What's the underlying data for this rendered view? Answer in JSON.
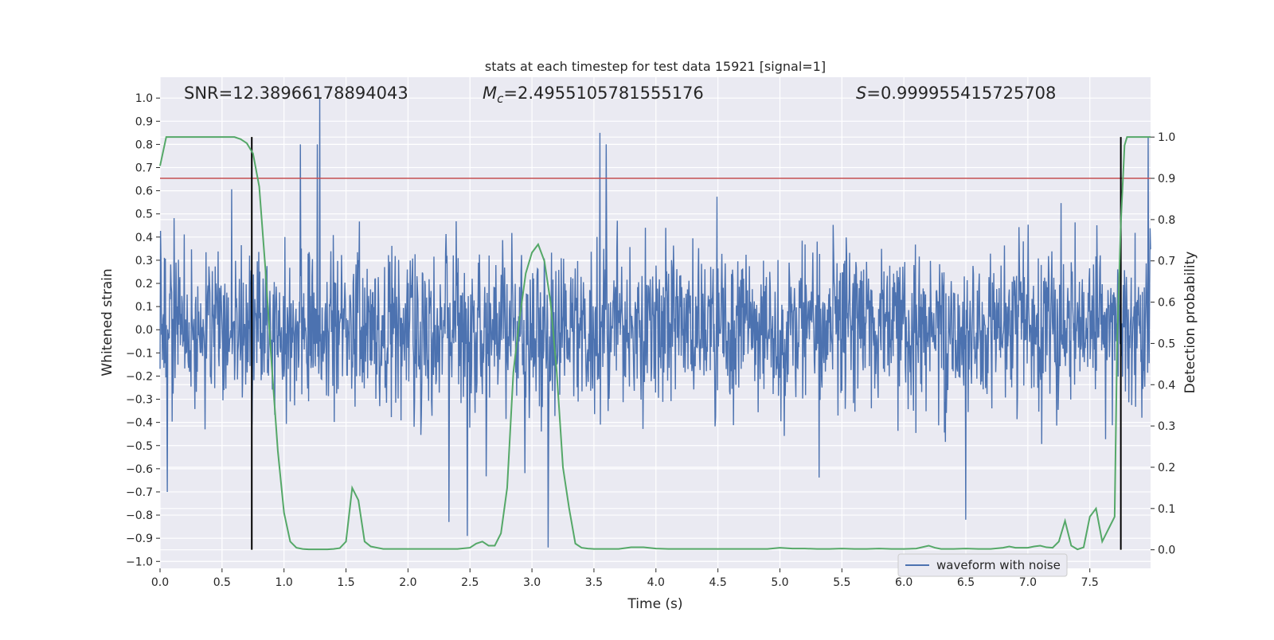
{
  "chart_data": {
    "type": "line",
    "title": "stats at each timestep for test data 15921 [signal=1]",
    "xlabel": "Time (s)",
    "ylabel": "Whitened strain",
    "y2label": "Detection probability",
    "xlim": [
      0.0,
      7.99
    ],
    "ylim": [
      -1.03,
      1.09
    ],
    "y2lim": [
      -0.045,
      1.145
    ],
    "xticks": [
      "0.0",
      "0.5",
      "1.0",
      "1.5",
      "2.0",
      "2.5",
      "3.0",
      "3.5",
      "4.0",
      "4.5",
      "5.0",
      "5.5",
      "6.0",
      "6.5",
      "7.0",
      "7.5"
    ],
    "yticks": [
      "1.0",
      "0.9",
      "0.8",
      "0.7",
      "0.6",
      "0.5",
      "0.4",
      "0.3",
      "0.2",
      "0.1",
      "0.0",
      "−0.1",
      "−0.2",
      "−0.3",
      "−0.4",
      "−0.5",
      "−0.6",
      "−0.7",
      "−0.8",
      "−0.9",
      "−1.0"
    ],
    "y2ticks": [
      "1.0",
      "0.9",
      "0.8",
      "0.7",
      "0.6",
      "0.5",
      "0.4",
      "0.3",
      "0.2",
      "0.1",
      "0.0"
    ],
    "annotations": {
      "snr": "SNR=12.38966178894043",
      "mc_symbol": "M",
      "mc_sub": "c",
      "mc_value": "=2.4955105781555176",
      "s_symbol": "S",
      "s_value": "=0.999955415725708"
    },
    "legend": {
      "label": "waveform with noise",
      "location": "lower-right"
    },
    "threshold": {
      "y2": 0.9,
      "color": "#c44e52"
    },
    "vlines": {
      "x": [
        0.74,
        7.75
      ],
      "y2_range": [
        0.0,
        1.0
      ],
      "color": "#000000"
    },
    "waveform": {
      "name": "waveform with noise",
      "color": "#4c72b0",
      "n": 2048,
      "x_range": [
        0.0,
        7.99
      ],
      "typical_amplitude": 0.18,
      "spike_max": 0.78,
      "spike_min": -0.9,
      "seed": 15921,
      "peaks": [
        {
          "x": 1.29,
          "y": 1.0
        },
        {
          "x": 1.13,
          "y": 0.8
        },
        {
          "x": 1.27,
          "y": 0.8
        },
        {
          "x": 3.55,
          "y": 0.85
        },
        {
          "x": 3.6,
          "y": 0.8
        },
        {
          "x": 3.13,
          "y": -0.94
        },
        {
          "x": 2.33,
          "y": -0.83
        },
        {
          "x": 2.48,
          "y": -0.89
        },
        {
          "x": 6.5,
          "y": -0.82
        },
        {
          "x": 0.06,
          "y": -0.7
        },
        {
          "x": 7.97,
          "y": 0.83
        }
      ]
    },
    "probability": {
      "name": "detection probability",
      "color": "#55a868",
      "x": [
        0.0,
        0.05,
        0.1,
        0.15,
        0.2,
        0.25,
        0.3,
        0.35,
        0.4,
        0.45,
        0.5,
        0.55,
        0.6,
        0.65,
        0.7,
        0.75,
        0.8,
        0.85,
        0.9,
        0.95,
        1.0,
        1.05,
        1.1,
        1.15,
        1.2,
        1.25,
        1.3,
        1.35,
        1.4,
        1.45,
        1.5,
        1.55,
        1.6,
        1.65,
        1.7,
        1.75,
        1.8,
        1.85,
        1.9,
        1.95,
        2.0,
        2.1,
        2.2,
        2.3,
        2.4,
        2.5,
        2.55,
        2.6,
        2.65,
        2.7,
        2.75,
        2.8,
        2.85,
        2.9,
        2.95,
        3.0,
        3.05,
        3.1,
        3.15,
        3.2,
        3.25,
        3.3,
        3.35,
        3.4,
        3.45,
        3.5,
        3.6,
        3.7,
        3.8,
        3.9,
        4.0,
        4.1,
        4.2,
        4.5,
        4.8,
        4.9,
        5.0,
        5.1,
        5.2,
        5.3,
        5.4,
        5.5,
        5.6,
        5.7,
        5.8,
        5.9,
        6.0,
        6.1,
        6.2,
        6.25,
        6.3,
        6.4,
        6.5,
        6.6,
        6.7,
        6.8,
        6.85,
        6.9,
        6.95,
        7.0,
        7.05,
        7.1,
        7.15,
        7.2,
        7.25,
        7.3,
        7.35,
        7.4,
        7.45,
        7.5,
        7.55,
        7.6,
        7.65,
        7.7,
        7.72,
        7.75,
        7.78,
        7.8,
        7.83,
        7.85,
        7.9,
        7.95,
        7.99
      ],
      "y": [
        0.93,
        1.0,
        1.0,
        1.0,
        1.0,
        1.0,
        1.0,
        1.0,
        1.0,
        1.0,
        1.0,
        1.0,
        1.0,
        0.995,
        0.985,
        0.96,
        0.88,
        0.68,
        0.45,
        0.24,
        0.09,
        0.02,
        0.005,
        0.002,
        0.001,
        0.001,
        0.001,
        0.001,
        0.002,
        0.004,
        0.02,
        0.15,
        0.12,
        0.02,
        0.008,
        0.005,
        0.002,
        0.002,
        0.002,
        0.002,
        0.002,
        0.002,
        0.002,
        0.002,
        0.002,
        0.005,
        0.015,
        0.02,
        0.01,
        0.01,
        0.04,
        0.15,
        0.43,
        0.56,
        0.67,
        0.72,
        0.74,
        0.7,
        0.6,
        0.43,
        0.2,
        0.1,
        0.015,
        0.005,
        0.003,
        0.002,
        0.002,
        0.002,
        0.006,
        0.006,
        0.003,
        0.002,
        0.002,
        0.002,
        0.002,
        0.002,
        0.005,
        0.003,
        0.003,
        0.002,
        0.002,
        0.003,
        0.002,
        0.002,
        0.003,
        0.002,
        0.002,
        0.003,
        0.01,
        0.005,
        0.002,
        0.002,
        0.003,
        0.002,
        0.002,
        0.005,
        0.008,
        0.005,
        0.005,
        0.005,
        0.008,
        0.01,
        0.006,
        0.005,
        0.02,
        0.07,
        0.01,
        0.001,
        0.006,
        0.08,
        0.1,
        0.02,
        0.05,
        0.08,
        0.5,
        0.79,
        0.98,
        1.0,
        1.0,
        1.0,
        1.0,
        1.0,
        1.0
      ]
    }
  }
}
